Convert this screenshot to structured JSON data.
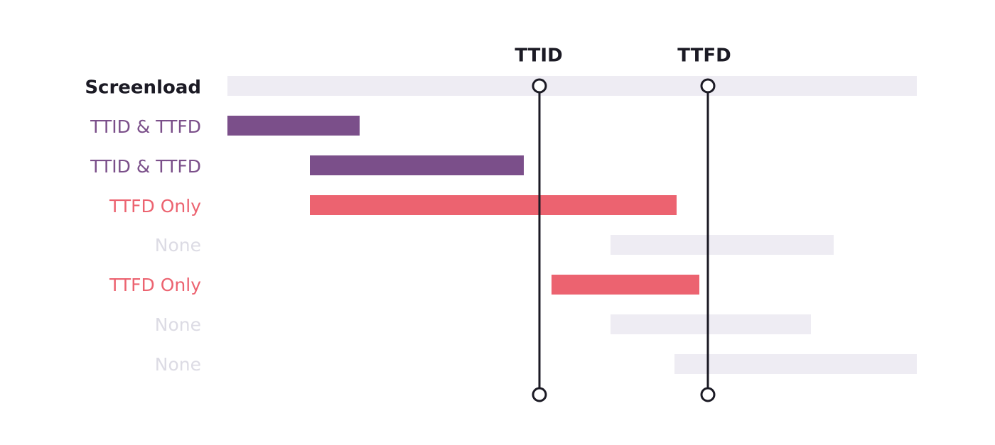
{
  "markers": [
    {
      "label": "TTID"
    },
    {
      "label": "TTFD"
    }
  ],
  "rows": [
    {
      "label": "Screenload"
    },
    {
      "label": "TTID & TTFD"
    },
    {
      "label": "TTID & TTFD"
    },
    {
      "label": "TTFD Only"
    },
    {
      "label": "None"
    },
    {
      "label": "TTFD Only"
    },
    {
      "label": "None"
    },
    {
      "label": "None"
    }
  ]
}
